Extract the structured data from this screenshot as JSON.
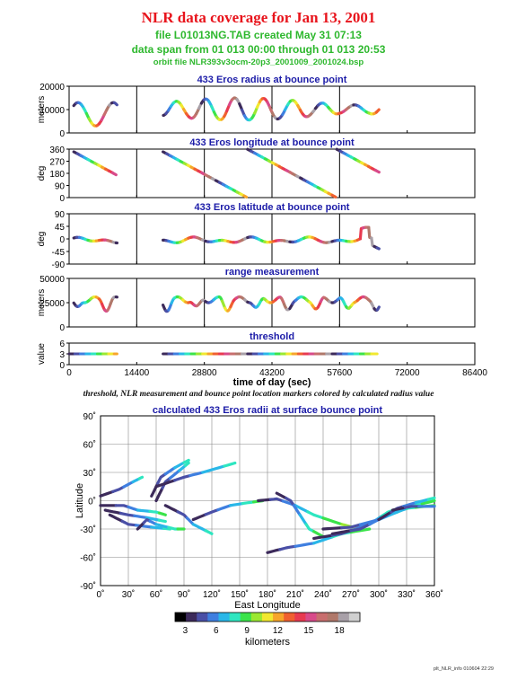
{
  "title": "NLR data coverage for Jan 13, 2001",
  "subtitle_lines": [
    "file L01013NG.TAB created May 31 07:13",
    "data span from 01 013 00:00 through 01 013 20:53",
    "orbit file NLR393v3ocm-20p3_2001009_2001024.bsp"
  ],
  "caption": "threshold, NLR measurement and bounce point location markers colored by calculated radius value",
  "footer": "plt_NLR_info 010604 22:29",
  "colors": {
    "title": "#e8141c",
    "subtitle": "#2eb82e",
    "panel_title": "#1c1ca8"
  },
  "chart_data": [
    {
      "type": "line",
      "title": "433 Eros radius at bounce point",
      "ylabel": "meters",
      "ylim": [
        0,
        20000
      ],
      "yticks": [
        0,
        10000,
        20000
      ],
      "vlines": [
        14400,
        28800,
        43200,
        57600
      ],
      "color_by": "calculated radius (km)",
      "series": [
        {
          "x": [
            1000,
            4000,
            8000,
            12000,
            15000,
            18000,
            20000,
            22000,
            24000,
            26000,
            27000,
            28000,
            30000,
            32000
          ],
          "y": [
            11000,
            6000,
            7000,
            12000,
            8000,
            6000,
            9000,
            13000,
            11000,
            8000,
            14000,
            16000,
            14000,
            12000
          ]
        }
      ]
    },
    {
      "type": "line",
      "title": "433 Eros longitude at bounce point",
      "ylabel": "deg",
      "ylim": [
        0,
        360
      ],
      "yticks": [
        0,
        90,
        180,
        270,
        360
      ],
      "vlines": [
        14400,
        28800,
        43200,
        57600
      ],
      "color_by": "calculated radius (km)"
    },
    {
      "type": "line",
      "title": "433 Eros latitude at bounce point",
      "ylabel": "deg",
      "ylim": [
        -90,
        90
      ],
      "yticks": [
        -90,
        -45,
        0,
        45,
        90
      ],
      "vlines": [
        14400,
        28800,
        43200,
        57600
      ],
      "color_by": "calculated radius (km)"
    },
    {
      "type": "line",
      "title": "range measurement",
      "ylabel": "meters",
      "ylim": [
        0,
        50000
      ],
      "yticks": [
        0,
        25000,
        50000
      ],
      "vlines": [
        14400,
        28800,
        43200,
        57600
      ],
      "color_by": "calculated radius (km)"
    },
    {
      "type": "line",
      "title": "threshold",
      "ylabel": "value",
      "ylim": [
        0,
        6
      ],
      "yticks": [
        0,
        3,
        6
      ],
      "xlabel": "time of day (sec)",
      "xlim": [
        0,
        86400
      ],
      "xticks": [
        0,
        14400,
        28800,
        43200,
        57600,
        72000,
        86400
      ],
      "segments": [
        [
          0,
          10200
        ],
        [
          20000,
          66000
        ]
      ],
      "value": 3,
      "color_by": "calculated radius (km)"
    },
    {
      "type": "line",
      "title": "calculated 433 Eros radii at surface bounce point",
      "xlabel": "East Longitude",
      "ylabel": "Latitude",
      "xlim": [
        0,
        360
      ],
      "ylim": [
        -90,
        90
      ],
      "xticks": [
        "0˚",
        "30˚",
        "60˚",
        "90˚",
        "120˚",
        "150˚",
        "180˚",
        "210˚",
        "240˚",
        "270˚",
        "300˚",
        "330˚",
        "360˚"
      ],
      "yticks": [
        "90˚",
        "60˚",
        "30˚",
        "0˚",
        "-30˚",
        "-60˚",
        "-90˚"
      ],
      "grid": true,
      "color_by": "calculated radius (km)"
    }
  ],
  "colorbar": {
    "label": "kilometers",
    "range": [
      2,
      20
    ],
    "ticks": [
      "3",
      "6",
      "9",
      "12",
      "15",
      "18"
    ],
    "tick_values": [
      3,
      6,
      9,
      12,
      15,
      18
    ],
    "colors": [
      "#000000",
      "#3c2a5a",
      "#4a4fa6",
      "#3f7fe0",
      "#29b7e8",
      "#2ee6c0",
      "#3be34a",
      "#9be832",
      "#f2e830",
      "#f7a52a",
      "#f06030",
      "#e83a50",
      "#d84a8a",
      "#c86e6e",
      "#b0786a",
      "#a8a0a8",
      "#d0d0d0"
    ]
  }
}
